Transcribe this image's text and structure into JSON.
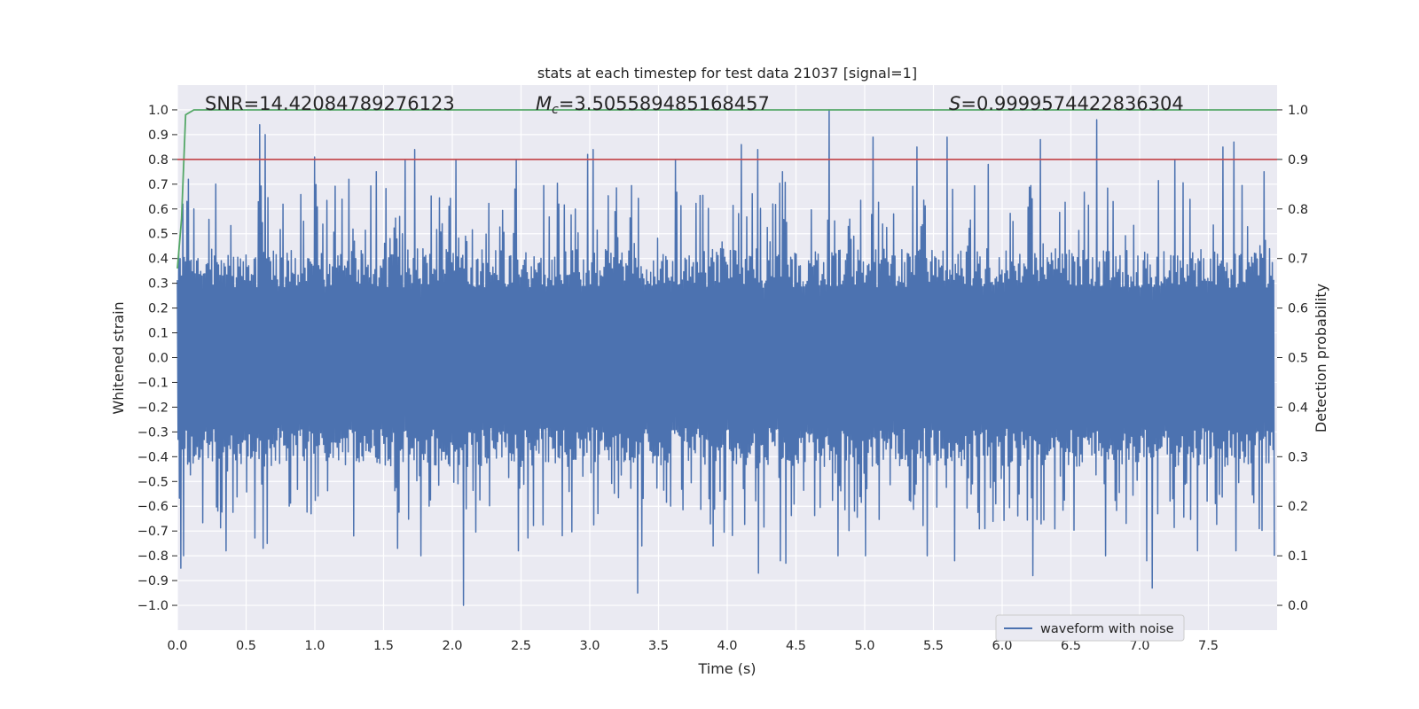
{
  "chart_data": {
    "type": "line",
    "title": "stats at each timestep for test data 21037 [signal=1]",
    "xlabel": "Time (s)",
    "ylabel": "Whitened strain",
    "y2label": "Detection probability",
    "xlim": [
      0.0,
      8.0
    ],
    "ylim": [
      -1.1,
      1.1
    ],
    "y2lim": [
      -0.05,
      1.05
    ],
    "xticks": [
      "0.0",
      "0.5",
      "1.0",
      "1.5",
      "2.0",
      "2.5",
      "3.0",
      "3.5",
      "4.0",
      "4.5",
      "5.0",
      "5.5",
      "6.0",
      "6.5",
      "7.0",
      "7.5"
    ],
    "yticks": [
      "1.0",
      "0.9",
      "0.8",
      "0.7",
      "0.6",
      "0.5",
      "0.4",
      "0.3",
      "0.2",
      "0.1",
      "0.0",
      "−0.1",
      "−0.2",
      "−0.3",
      "−0.4",
      "−0.5",
      "−0.6",
      "−0.7",
      "−0.8",
      "−0.9",
      "−1.0"
    ],
    "y2ticks": [
      "1.0",
      "0.9",
      "0.8",
      "0.7",
      "0.6",
      "0.5",
      "0.4",
      "0.3",
      "0.2",
      "0.1",
      "0.0"
    ],
    "grid": true,
    "legend_position": "lower-right",
    "annotations": {
      "snr": "SNR=14.42084789276123",
      "mc_symbol": "M",
      "mc_sub": "c",
      "mc_value": "=3.505589485168457",
      "s_symbol": "S",
      "s_value": "=0.9999574422836304"
    },
    "series": [
      {
        "name": "waveform with noise",
        "axis": "left",
        "color": "#4c72b0",
        "description": "dense noisy strain, bulk within ~±0.4, peaks toward ±1.0",
        "peaks_pos": [
          [
            0.04,
            0.62
          ],
          [
            0.08,
            0.72
          ],
          [
            0.12,
            0.6
          ],
          [
            0.28,
            0.7
          ],
          [
            0.6,
            0.94
          ],
          [
            0.64,
            0.9
          ],
          [
            1.0,
            0.81
          ],
          [
            1.25,
            0.72
          ],
          [
            1.44,
            0.75
          ],
          [
            1.65,
            0.8
          ],
          [
            1.72,
            0.84
          ],
          [
            2.02,
            0.8
          ],
          [
            2.46,
            0.8
          ],
          [
            2.98,
            0.82
          ],
          [
            3.02,
            0.84
          ],
          [
            3.62,
            0.8
          ],
          [
            4.1,
            0.86
          ],
          [
            4.22,
            0.84
          ],
          [
            4.4,
            0.75
          ],
          [
            4.74,
            1.0
          ],
          [
            5.06,
            0.89
          ],
          [
            5.38,
            0.85
          ],
          [
            5.6,
            0.89
          ],
          [
            5.9,
            0.78
          ],
          [
            6.28,
            0.88
          ],
          [
            6.68,
            0.96
          ],
          [
            7.25,
            0.8
          ],
          [
            7.6,
            0.85
          ],
          [
            7.68,
            0.87
          ],
          [
            7.9,
            0.75
          ]
        ],
        "peaks_neg": [
          [
            0.02,
            -0.85
          ],
          [
            0.04,
            -0.8
          ],
          [
            0.35,
            -0.78
          ],
          [
            0.62,
            -0.77
          ],
          [
            0.65,
            -0.75
          ],
          [
            1.28,
            -0.72
          ],
          [
            1.6,
            -0.77
          ],
          [
            1.77,
            -0.8
          ],
          [
            2.08,
            -1.0
          ],
          [
            2.48,
            -0.78
          ],
          [
            3.35,
            -0.95
          ],
          [
            3.38,
            -0.76
          ],
          [
            3.9,
            -0.76
          ],
          [
            4.22,
            -0.87
          ],
          [
            4.38,
            -0.82
          ],
          [
            4.42,
            -0.83
          ],
          [
            4.8,
            -0.8
          ],
          [
            5.0,
            -0.8
          ],
          [
            5.45,
            -0.8
          ],
          [
            5.65,
            -0.82
          ],
          [
            6.22,
            -0.88
          ],
          [
            6.75,
            -0.8
          ],
          [
            7.05,
            -0.82
          ],
          [
            7.09,
            -0.93
          ],
          [
            7.42,
            -0.78
          ],
          [
            7.7,
            -0.78
          ],
          [
            7.98,
            -0.8
          ]
        ]
      },
      {
        "name": "",
        "axis": "right",
        "color": "#55a868",
        "points": [
          [
            0.0,
            0.68
          ],
          [
            0.03,
            0.78
          ],
          [
            0.06,
            0.99
          ],
          [
            0.12,
            1.0
          ],
          [
            8.0,
            1.0
          ]
        ]
      },
      {
        "name": "",
        "axis": "right",
        "color": "#c44e52",
        "points": [
          [
            0.0,
            0.9
          ],
          [
            8.0,
            0.9
          ]
        ]
      }
    ]
  }
}
